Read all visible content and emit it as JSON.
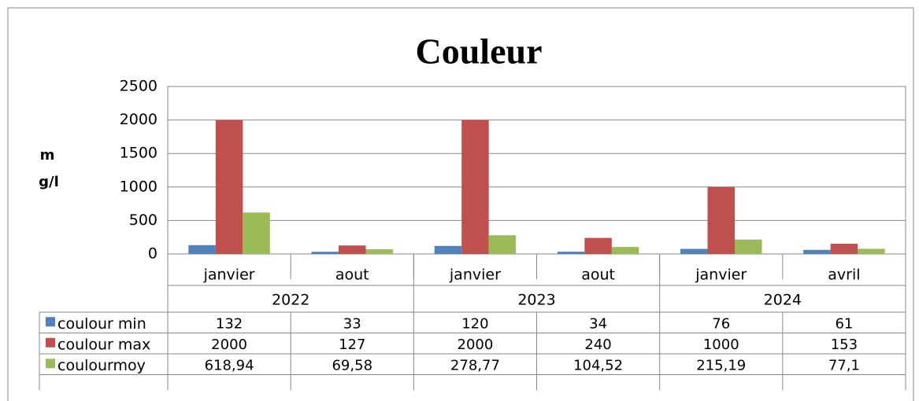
{
  "chart_data": {
    "type": "bar",
    "title": "Couleur",
    "y_label_lines": [
      "m",
      "g/l"
    ],
    "categories": [
      "janvier",
      "aout",
      "janvier",
      "aout",
      "janvier",
      "avril"
    ],
    "groups": [
      {
        "label": "2022",
        "span": 2
      },
      {
        "label": "2023",
        "span": 2
      },
      {
        "label": "2024",
        "span": 2
      }
    ],
    "series": [
      {
        "name": "coulour min",
        "color": "#4f81bd",
        "values": [
          132,
          33,
          120,
          34,
          76,
          61
        ]
      },
      {
        "name": "coulour max",
        "color": "#c0504d",
        "values": [
          2000,
          127,
          2000,
          240,
          1000,
          153
        ]
      },
      {
        "name": "coulourmoy",
        "color": "#9bbb59",
        "values": [
          618.94,
          69.58,
          278.77,
          104.52,
          215.19,
          77.1
        ],
        "value_labels": [
          "618,94",
          "69,58",
          "278,77",
          "104,52",
          "215,19",
          "77,1"
        ]
      }
    ],
    "ylim": [
      0,
      2500
    ],
    "yticks": [
      0,
      500,
      1000,
      1500,
      2000,
      2500
    ],
    "grid": true
  }
}
